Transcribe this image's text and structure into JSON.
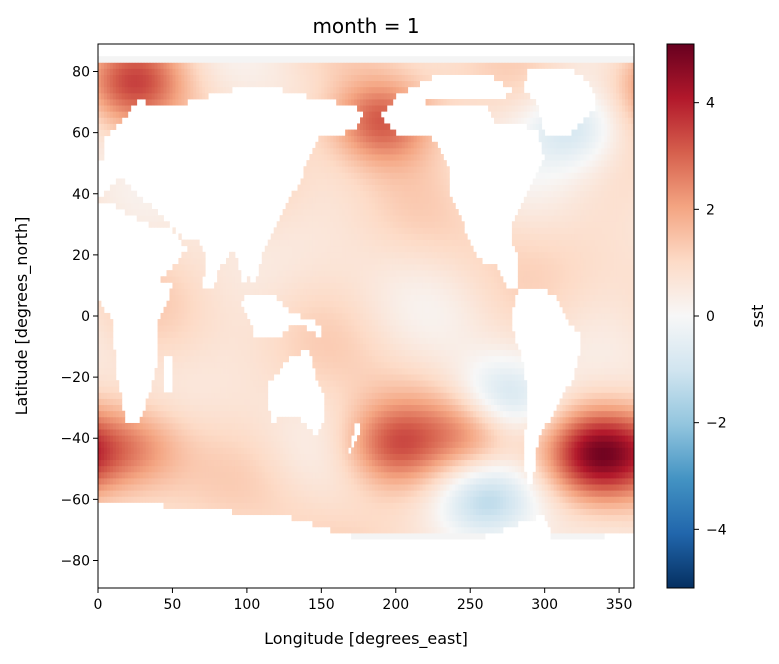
{
  "chart_data": {
    "type": "heatmap",
    "title": "month = 1",
    "xlabel": "Longitude [degrees_east]",
    "ylabel": "Latitude [degrees_north]",
    "xlim": [
      0,
      360
    ],
    "ylim": [
      -89,
      89
    ],
    "xticks": [
      0,
      50,
      100,
      150,
      200,
      250,
      300,
      350
    ],
    "yticks": [
      -80,
      -60,
      -40,
      -20,
      0,
      20,
      40,
      60,
      80
    ],
    "colorbar": {
      "label": "sst",
      "colormap": "RdBu_r",
      "vmin": -5.1,
      "vmax": 5.1,
      "ticks": [
        -4,
        -2,
        0,
        2,
        4
      ]
    },
    "grid": false,
    "features": [
      {
        "desc": "Southern Ocean warm anomaly near 330-345E",
        "lon": 335,
        "lat": -45,
        "value": 4.0
      },
      {
        "desc": "Warm anomaly near 200E",
        "lon": 198,
        "lat": -42,
        "value": 3.0
      },
      {
        "desc": "Warm anomaly near 255E",
        "lon": 255,
        "lat": -37,
        "value": 2.6
      },
      {
        "desc": "Indian Ocean warm anomaly",
        "lon": 25,
        "lat": -43,
        "value": 2.2
      },
      {
        "desc": "Cold anomaly east Pacific",
        "lon": 270,
        "lat": -28,
        "value": -1.8
      },
      {
        "desc": "Cold anomaly south Pacific",
        "lon": 260,
        "lat": -60,
        "value": -1.3
      },
      {
        "desc": "Cold anomaly north Atlantic",
        "lon": 320,
        "lat": 62,
        "value": -1.2
      },
      {
        "desc": "Arctic warm anomaly",
        "lon": 25,
        "lat": 77,
        "value": 3.0
      },
      {
        "desc": "Bering Sea warm anomaly",
        "lon": 190,
        "lat": 64,
        "value": 3.2
      }
    ]
  }
}
